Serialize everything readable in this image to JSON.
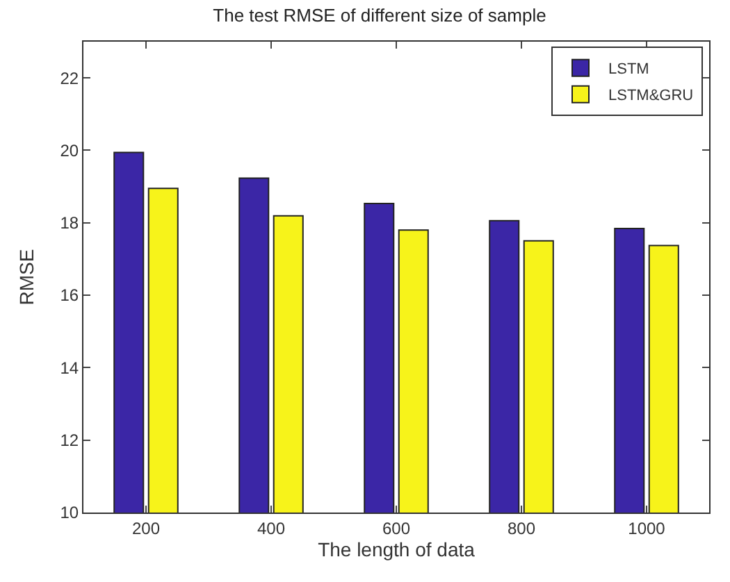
{
  "chart_data": {
    "type": "bar",
    "title": "The test RMSE of different size of sample",
    "xlabel": "The length of data",
    "ylabel": "RMSE",
    "categories": [
      "200",
      "400",
      "600",
      "800",
      "1000"
    ],
    "series": [
      {
        "name": "LSTM",
        "color": "#3b26a6",
        "values": [
          19.94,
          19.23,
          18.53,
          18.06,
          17.84
        ]
      },
      {
        "name": "LSTM&GRU",
        "color": "#f7f31a",
        "values": [
          18.95,
          18.19,
          17.8,
          17.5,
          17.37
        ]
      }
    ],
    "ylim": [
      10,
      23
    ],
    "yticks": [
      10,
      12,
      14,
      16,
      18,
      20,
      22
    ],
    "legend": "top right"
  }
}
